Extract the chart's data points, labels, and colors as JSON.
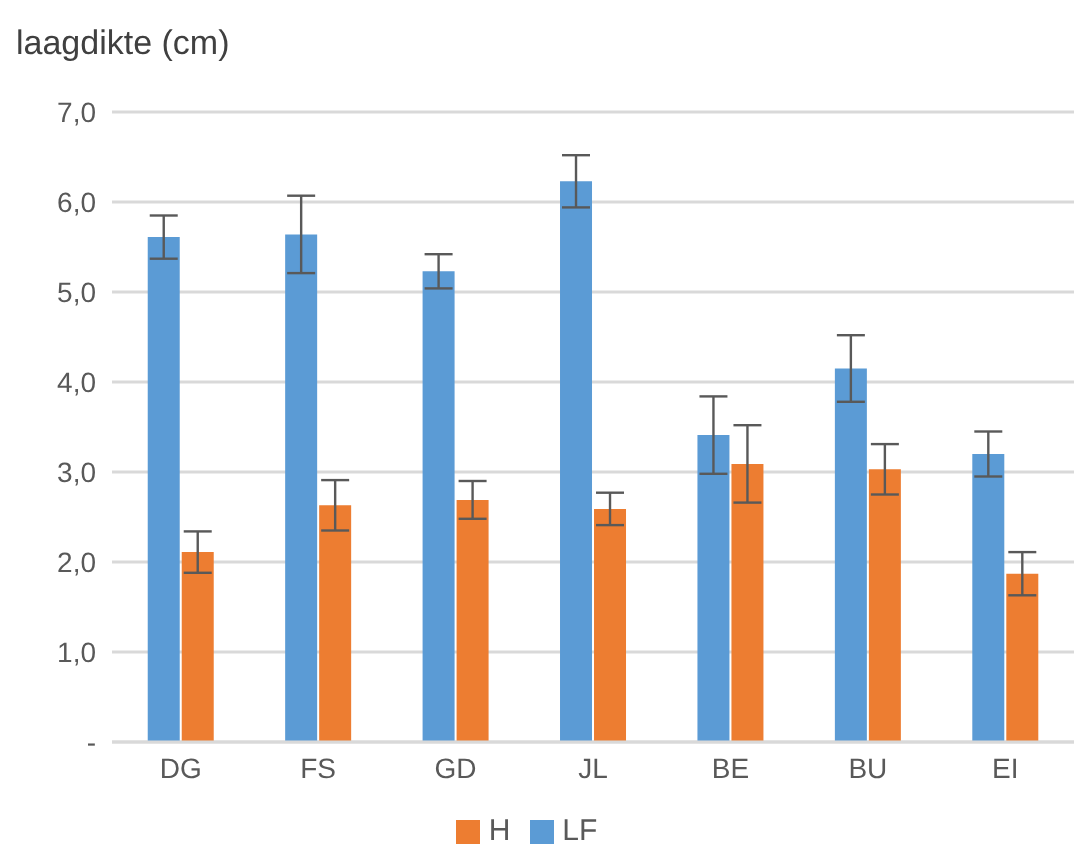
{
  "chart_data": {
    "type": "bar",
    "ylabel": "laagdikte (cm)",
    "categories": [
      "DG",
      "FS",
      "GD",
      "JL",
      "BE",
      "BU",
      "EI"
    ],
    "series": [
      {
        "name": "LF",
        "color": "#5b9bd5",
        "values": [
          5.61,
          5.64,
          5.23,
          6.23,
          3.41,
          4.15,
          3.2
        ],
        "errors": [
          0.24,
          0.43,
          0.19,
          0.29,
          0.43,
          0.37,
          0.25
        ]
      },
      {
        "name": "H",
        "color": "#ed7d31",
        "values": [
          2.11,
          2.63,
          2.69,
          2.59,
          3.09,
          3.03,
          1.87
        ],
        "errors": [
          0.23,
          0.28,
          0.21,
          0.18,
          0.43,
          0.28,
          0.24
        ]
      }
    ],
    "ylim": [
      0,
      7
    ],
    "yticks": [
      {
        "value": 0,
        "label": "-"
      },
      {
        "value": 1,
        "label": "1,0"
      },
      {
        "value": 2,
        "label": "2,0"
      },
      {
        "value": 3,
        "label": "3,0"
      },
      {
        "value": 4,
        "label": "4,0"
      },
      {
        "value": 5,
        "label": "5,0"
      },
      {
        "value": 6,
        "label": "6,0"
      },
      {
        "value": 7,
        "label": "7,0"
      }
    ],
    "grid": "y",
    "legend": "bottom"
  }
}
